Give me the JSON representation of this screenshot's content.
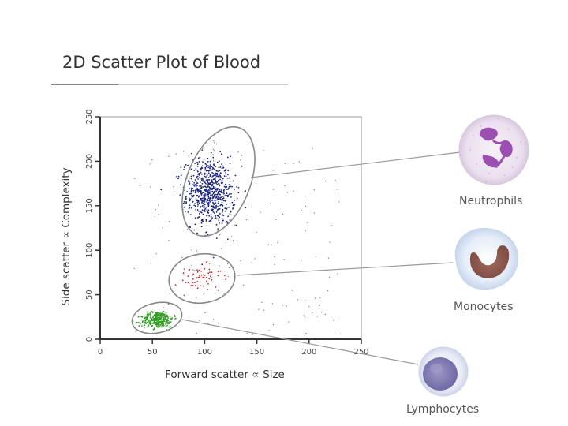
{
  "chart_data": {
    "type": "scatter",
    "title": "2D Scatter Plot of Blood",
    "xlabel": "Forward scatter ∝ Size",
    "ylabel": "Side scatter ∝ Complexity",
    "xlim": [
      0,
      250
    ],
    "ylim": [
      0,
      250
    ],
    "xticks": [
      "0",
      "50",
      "100",
      "150",
      "200",
      "250"
    ],
    "yticks": [
      "0",
      "50",
      "100",
      "150",
      "200",
      "250"
    ],
    "series": [
      {
        "name": "Neutrophils",
        "color": "#1a237e",
        "center": [
          105,
          165
        ],
        "spread": [
          12,
          20
        ],
        "rotation_deg": 20,
        "n": 700
      },
      {
        "name": "Monocytes",
        "color": "#c62828",
        "center": [
          95,
          68
        ],
        "spread": [
          12,
          8
        ],
        "rotation_deg": 25,
        "n": 60
      },
      {
        "name": "Lymphocytes",
        "color": "#2e9e1f",
        "center": [
          55,
          22
        ],
        "spread": [
          8,
          5
        ],
        "rotation_deg": 20,
        "n": 300
      }
    ],
    "background_scatter": {
      "color": "#333333",
      "n": 160,
      "x_range": [
        30,
        230
      ],
      "y_range": [
        5,
        230
      ]
    },
    "grid": false
  },
  "cells": [
    {
      "name": "Neutrophils",
      "label": "Neutrophils"
    },
    {
      "name": "Monocytes",
      "label": "Monocytes"
    },
    {
      "name": "Lymphocytes",
      "label": "Lymphocytes"
    }
  ]
}
